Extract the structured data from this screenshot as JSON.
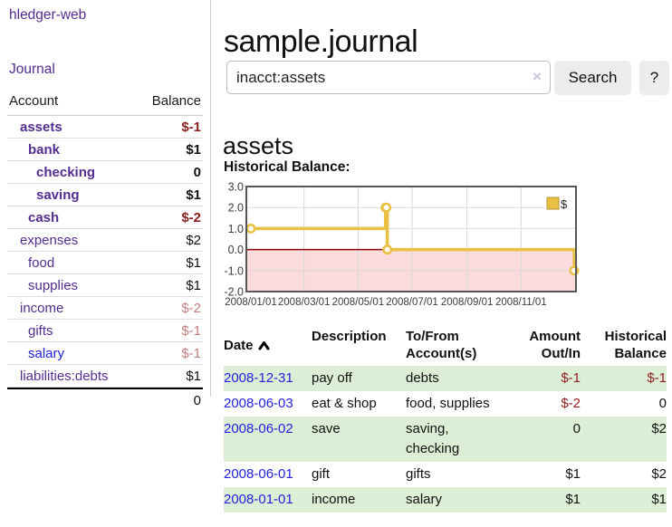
{
  "app": {
    "brand": "hledger-web",
    "nav_journal": "Journal"
  },
  "sidebar": {
    "table": {
      "col_account": "Account",
      "col_balance": "Balance",
      "rows": [
        {
          "account": "assets",
          "balance": "$-1",
          "indent": 1,
          "bold": true
        },
        {
          "account": "bank",
          "balance": "$1",
          "indent": 2,
          "bold": true
        },
        {
          "account": "checking",
          "balance": "0",
          "indent": 3,
          "bold": true
        },
        {
          "account": "saving",
          "balance": "$1",
          "indent": 3,
          "bold": true
        },
        {
          "account": "cash",
          "balance": "$-2",
          "indent": 2,
          "bold": true
        },
        {
          "account": "expenses",
          "balance": "$2",
          "indent": 1,
          "bold": false
        },
        {
          "account": "food",
          "balance": "$1",
          "indent": 2,
          "bold": false
        },
        {
          "account": "supplies",
          "balance": "$1",
          "indent": 2,
          "bold": false
        },
        {
          "account": "income",
          "balance": "$-2",
          "indent": 1,
          "bold": false
        },
        {
          "account": "gifts",
          "balance": "$-1",
          "indent": 2,
          "bold": false
        },
        {
          "account": "salary",
          "balance": "$-1",
          "indent": 2,
          "bold": false,
          "link_color": "blue"
        },
        {
          "account": "liabilities:debts",
          "balance": "$1",
          "indent": 1,
          "bold": false
        }
      ],
      "total": "0"
    }
  },
  "main": {
    "title": "sample.journal",
    "search": {
      "value": "inacct:assets",
      "clear_icon": "×",
      "button": "Search",
      "help_button": "?"
    },
    "account_heading": "assets",
    "chart_label": "Historical Balance:"
  },
  "chart_data": {
    "type": "line",
    "title": "Historical Balance",
    "step": true,
    "series": [
      {
        "name": "$",
        "color": "#e9c044",
        "points": [
          {
            "date": "2008-01-01",
            "value": 1
          },
          {
            "date": "2008-06-01",
            "value": 2
          },
          {
            "date": "2008-06-02",
            "value": 2
          },
          {
            "date": "2008-06-03",
            "value": 0
          },
          {
            "date": "2008-12-31",
            "value": -1
          }
        ]
      }
    ],
    "ylim": [
      -2,
      3
    ],
    "yticks": [
      3.0,
      2.0,
      1.0,
      0.0,
      -1.0,
      -2.0
    ],
    "xticks": [
      "2008/01/01",
      "2008/03/01",
      "2008/05/01",
      "2008/07/01",
      "2008/09/01",
      "2008/11/01"
    ],
    "x_range": [
      "2008-01-01",
      "2008-12-31"
    ],
    "legend_position": "top-right",
    "grid": true,
    "negative_region_color": "#fbdbdb",
    "zero_line_color": "#8b0000",
    "border_color": "#565656",
    "grid_color": "#d9d9d9"
  },
  "register": {
    "headers": {
      "date": "Date",
      "description": "Description",
      "accounts": "To/From\nAccount(s)",
      "amount": "Amount\nOut/In",
      "balance": "Historical\nBalance"
    },
    "rows": [
      {
        "date": "2008-12-31",
        "description": "pay off",
        "accounts": "debts",
        "amount": "$-1",
        "balance": "$-1",
        "shaded": true
      },
      {
        "date": "2008-06-03",
        "description": "eat & shop",
        "accounts": "food, supplies",
        "amount": "$-2",
        "balance": "0",
        "shaded": false
      },
      {
        "date": "2008-06-02",
        "description": "save",
        "accounts": "saving,\nchecking",
        "amount": "0",
        "balance": "$2",
        "shaded": true
      },
      {
        "date": "2008-06-01",
        "description": "gift",
        "accounts": "gifts",
        "amount": "$1",
        "balance": "$2",
        "shaded": false
      },
      {
        "date": "2008-01-01",
        "description": "income",
        "accounts": "salary",
        "amount": "$1",
        "balance": "$1",
        "shaded": true
      }
    ]
  }
}
